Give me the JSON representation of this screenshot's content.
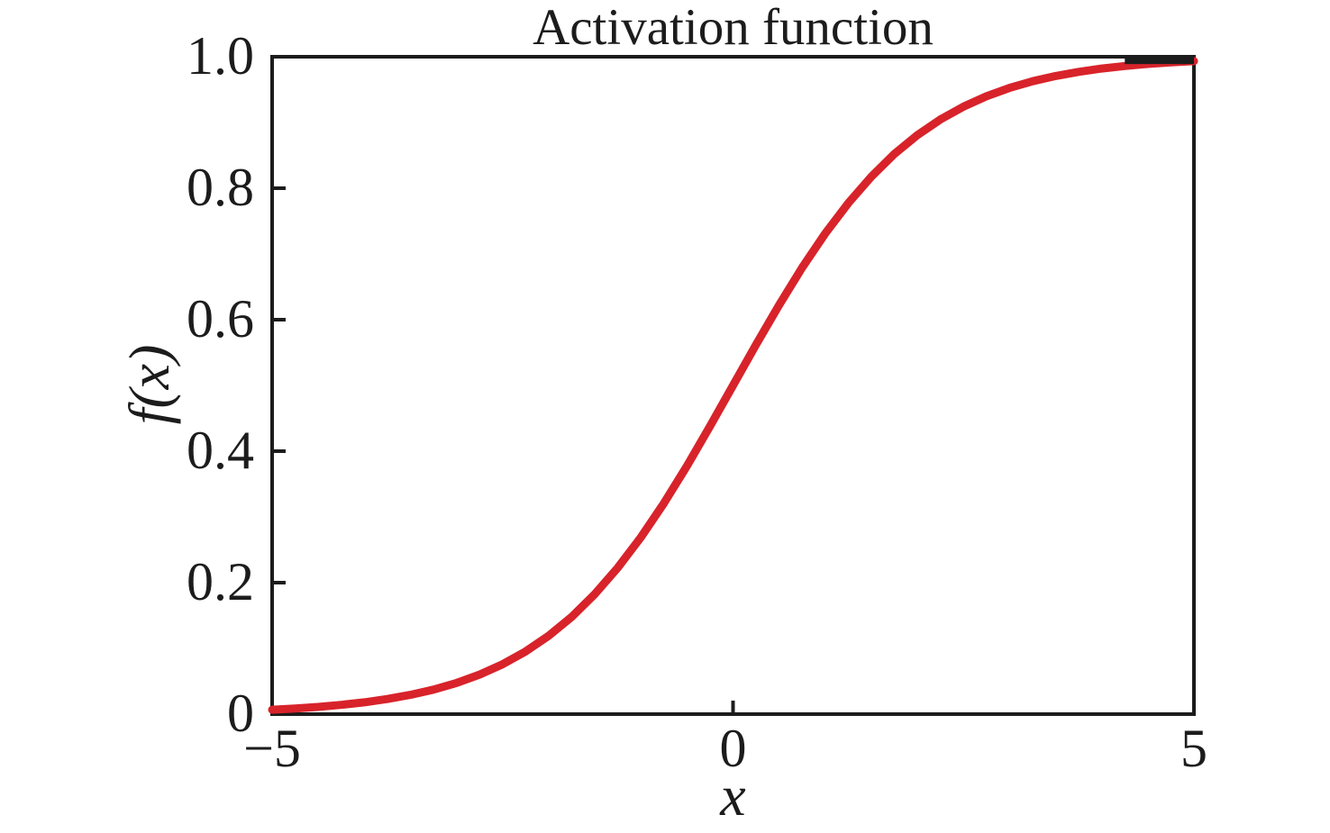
{
  "figure": {
    "title": "Activation function",
    "xlabel": "x",
    "ylabel": "f(x)"
  },
  "colors": {
    "background": "#ffffff",
    "axis": "#1c1c1c",
    "curve": "#d8232a"
  },
  "chart_data": {
    "type": "line",
    "title": "Activation function",
    "xlabel": "x",
    "ylabel": "f(x)",
    "xlim": [
      -5,
      5
    ],
    "ylim": [
      0,
      1
    ],
    "xticks": [
      -5,
      0,
      5
    ],
    "xtick_labels": [
      "−5",
      "0",
      "5"
    ],
    "yticks": [
      0,
      0.2,
      0.4,
      0.6,
      0.8,
      1.0
    ],
    "ytick_labels": [
      "0",
      "0.2",
      "0.4",
      "0.6",
      "0.8",
      "1.0"
    ],
    "grid": false,
    "legend": "none",
    "tick_direction": "in",
    "series": [
      {
        "name": "activation-curve",
        "color": "#d8232a",
        "x": [
          -5,
          -4.75,
          -4.5,
          -4.25,
          -4,
          -3.75,
          -3.5,
          -3.25,
          -3,
          -2.75,
          -2.5,
          -2.25,
          -2,
          -1.75,
          -1.5,
          -1.25,
          -1,
          -0.75,
          -0.5,
          -0.25,
          0,
          0.25,
          0.5,
          0.75,
          1,
          1.25,
          1.5,
          1.75,
          2,
          2.25,
          2.5,
          2.75,
          3,
          3.25,
          3.5,
          3.75,
          4,
          4.25,
          4.5,
          4.75,
          5
        ],
        "y": [
          0.0067,
          0.0086,
          0.011,
          0.0141,
          0.018,
          0.023,
          0.0293,
          0.0373,
          0.0474,
          0.0601,
          0.0759,
          0.0953,
          0.1192,
          0.148,
          0.1824,
          0.2227,
          0.2689,
          0.3208,
          0.3775,
          0.4378,
          0.5,
          0.5622,
          0.6225,
          0.6792,
          0.7311,
          0.7773,
          0.8176,
          0.852,
          0.8808,
          0.9047,
          0.9241,
          0.9399,
          0.9526,
          0.9627,
          0.9707,
          0.977,
          0.982,
          0.9859,
          0.989,
          0.9914,
          0.9933
        ]
      }
    ],
    "annotations": [
      {
        "name": "asymptote-segment",
        "type": "segment",
        "color": "#1c1c1c",
        "x": [
          4.25,
          5.0
        ],
        "y": [
          0.995,
          0.995
        ]
      }
    ]
  }
}
